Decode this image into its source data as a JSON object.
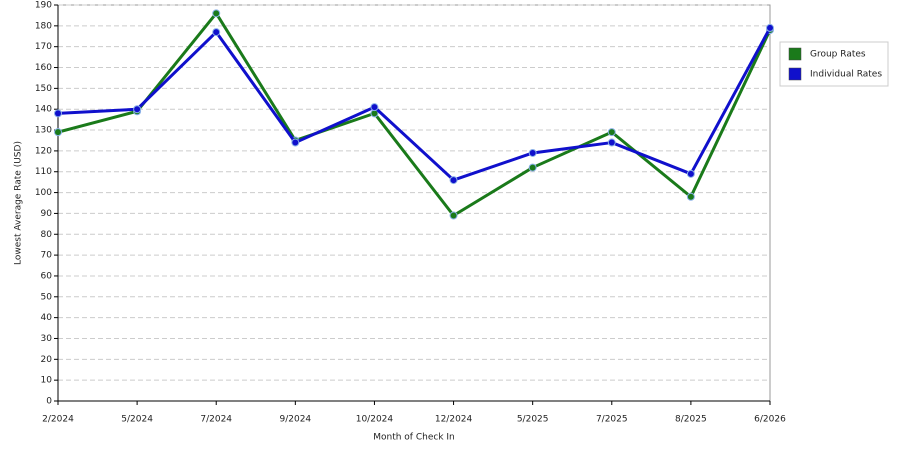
{
  "chart_data": {
    "type": "line",
    "x_label": "Month of Check In",
    "y_label": "Lowest Average Rate (USD)",
    "categories": [
      "2/2024",
      "5/2024",
      "7/2024",
      "9/2024",
      "10/2024",
      "12/2024",
      "5/2025",
      "7/2025",
      "8/2025",
      "6/2026"
    ],
    "series": [
      {
        "name": "Group Rates",
        "color": "#1a7a1a",
        "values": [
          129,
          139,
          186,
          125,
          138,
          89,
          112,
          129,
          98,
          178
        ]
      },
      {
        "name": "Individual Rates",
        "color": "#1010cc",
        "values": [
          138,
          140,
          177,
          124,
          141,
          106,
          119,
          124,
          109,
          179
        ]
      }
    ],
    "ylim": [
      0,
      190
    ],
    "yticks": [
      0,
      10,
      20,
      30,
      40,
      50,
      60,
      70,
      80,
      90,
      100,
      110,
      120,
      130,
      140,
      150,
      160,
      170,
      180,
      190
    ],
    "grid": true,
    "legend": "right"
  }
}
